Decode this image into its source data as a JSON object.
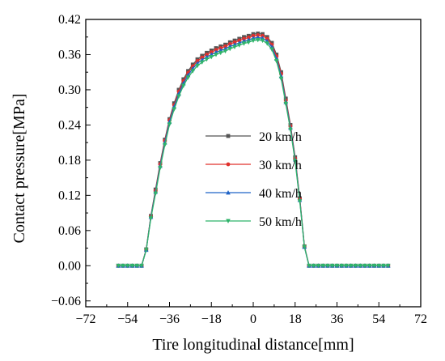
{
  "chart_data": {
    "type": "line",
    "xlabel": "Tire longitudinal distance[mm]",
    "ylabel": "Contact pressure[MPa]",
    "xlim": [
      -72,
      72
    ],
    "ylim": [
      -0.07,
      0.42
    ],
    "xticks": [
      -72,
      -54,
      -36,
      -18,
      0,
      18,
      36,
      54,
      72
    ],
    "xtick_labels": [
      "−72",
      "−54",
      "−36",
      "−18",
      "0",
      "18",
      "36",
      "54",
      "72"
    ],
    "yticks": [
      -0.06,
      0,
      0.06,
      0.12,
      0.18,
      0.24,
      0.3,
      0.36,
      0.42
    ],
    "ytick_labels": [
      "−0.06",
      "0.00",
      "0.06",
      "0.12",
      "0.18",
      "0.24",
      "0.30",
      "0.36",
      "0.42"
    ],
    "grid": false,
    "legend_position": "center",
    "x": [
      -58,
      -56,
      -54,
      -52,
      -50,
      -48,
      -46,
      -44,
      -42,
      -40,
      -38,
      -36,
      -34,
      -32,
      -30,
      -28,
      -26,
      -24,
      -22,
      -20,
      -18,
      -16,
      -14,
      -12,
      -10,
      -8,
      -6,
      -4,
      -2,
      0,
      2,
      4,
      6,
      8,
      10,
      12,
      14,
      16,
      18,
      20,
      22,
      24,
      26,
      28,
      30,
      32,
      34,
      36,
      38,
      40,
      42,
      44,
      46,
      48,
      50,
      52,
      54,
      56,
      58
    ],
    "series": [
      {
        "name": "20 km/h",
        "color": "#555555",
        "marker": "square",
        "values": [
          0,
          0,
          0,
          0,
          0,
          0,
          0.028,
          0.085,
          0.13,
          0.175,
          0.215,
          0.25,
          0.277,
          0.3,
          0.318,
          0.332,
          0.343,
          0.352,
          0.358,
          0.363,
          0.367,
          0.371,
          0.374,
          0.377,
          0.381,
          0.384,
          0.387,
          0.39,
          0.392,
          0.395,
          0.396,
          0.395,
          0.39,
          0.38,
          0.36,
          0.33,
          0.285,
          0.24,
          0.185,
          0.115,
          0.033,
          0,
          0,
          0,
          0,
          0,
          0,
          0,
          0,
          0,
          0,
          0,
          0,
          0,
          0,
          0,
          0,
          0,
          0
        ]
      },
      {
        "name": "30 km/h",
        "color": "#e0302c",
        "marker": "circle",
        "values": [
          0,
          0,
          0,
          0,
          0,
          0,
          0.028,
          0.084,
          0.128,
          0.173,
          0.213,
          0.248,
          0.274,
          0.297,
          0.315,
          0.329,
          0.34,
          0.349,
          0.355,
          0.36,
          0.364,
          0.368,
          0.371,
          0.374,
          0.378,
          0.381,
          0.384,
          0.387,
          0.389,
          0.392,
          0.393,
          0.392,
          0.387,
          0.377,
          0.357,
          0.327,
          0.282,
          0.238,
          0.183,
          0.114,
          0.033,
          0,
          0,
          0,
          0,
          0,
          0,
          0,
          0,
          0,
          0,
          0,
          0,
          0,
          0,
          0,
          0,
          0,
          0
        ]
      },
      {
        "name": "40 km/h",
        "color": "#1f63c6",
        "marker": "triangle-up",
        "values": [
          0,
          0,
          0,
          0,
          0,
          0,
          0.027,
          0.083,
          0.126,
          0.17,
          0.21,
          0.245,
          0.271,
          0.293,
          0.311,
          0.325,
          0.336,
          0.345,
          0.351,
          0.356,
          0.36,
          0.364,
          0.367,
          0.37,
          0.374,
          0.377,
          0.38,
          0.383,
          0.385,
          0.388,
          0.389,
          0.388,
          0.383,
          0.373,
          0.353,
          0.323,
          0.279,
          0.235,
          0.181,
          0.112,
          0.032,
          0,
          0,
          0,
          0,
          0,
          0,
          0,
          0,
          0,
          0,
          0,
          0,
          0,
          0,
          0,
          0,
          0,
          0
        ]
      },
      {
        "name": "50 km/h",
        "color": "#2fb36a",
        "marker": "triangle-down",
        "values": [
          0,
          0,
          0,
          0,
          0,
          0,
          0.027,
          0.081,
          0.123,
          0.167,
          0.206,
          0.241,
          0.267,
          0.289,
          0.307,
          0.321,
          0.332,
          0.341,
          0.347,
          0.352,
          0.356,
          0.36,
          0.363,
          0.366,
          0.37,
          0.373,
          0.376,
          0.379,
          0.381,
          0.384,
          0.385,
          0.384,
          0.379,
          0.369,
          0.349,
          0.319,
          0.276,
          0.232,
          0.178,
          0.11,
          0.032,
          0,
          0,
          0,
          0,
          0,
          0,
          0,
          0,
          0,
          0,
          0,
          0,
          0,
          0,
          0,
          0,
          0,
          0
        ]
      }
    ]
  }
}
